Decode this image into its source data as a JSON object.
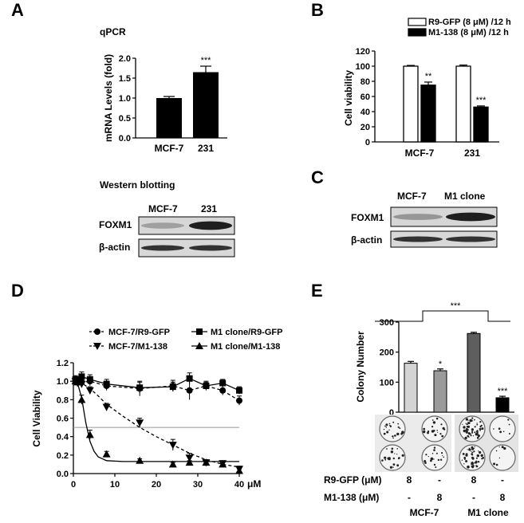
{
  "panels": {
    "A": {
      "letter": "A",
      "qpcr_title": "qPCR",
      "wb_title": "Western blotting",
      "wb_lane_labels": [
        "MCF-7",
        "231"
      ],
      "wb_row_labels": [
        "FOXM1",
        "β-actin"
      ],
      "wb_foxm1_intensity": [
        0.3,
        0.95
      ],
      "wb_actin_intensity": [
        0.85,
        0.85
      ]
    },
    "B": {
      "letter": "B"
    },
    "C": {
      "letter": "C",
      "lane_labels": [
        "MCF-7",
        "M1 clone"
      ],
      "row_labels": [
        "FOXM1",
        "β-actin"
      ],
      "foxm1_intensity": [
        0.35,
        0.95
      ],
      "actin_intensity": [
        0.85,
        0.85
      ]
    },
    "D": {
      "letter": "D"
    },
    "E": {
      "letter": "E",
      "bottom_row_labels": [
        "R9-GFP (μM)",
        "M1-138 (μM)"
      ],
      "r9gfp_values": [
        "8",
        "-",
        "8",
        "-"
      ],
      "m1138_values": [
        "-",
        "8",
        "-",
        "8"
      ],
      "group_labels": [
        "MCF-7",
        "M1 clone"
      ],
      "bracket_significance": "***"
    }
  },
  "chart_data": [
    {
      "id": "A-qpcr",
      "type": "bar",
      "categories": [
        "MCF-7",
        "231"
      ],
      "values": [
        1.0,
        1.65
      ],
      "errors": [
        0.04,
        0.15
      ],
      "significance": [
        "",
        "***"
      ],
      "ylabel": "mRNA Levels (fold)",
      "ylim": [
        0,
        2.0
      ],
      "yticks": [
        "0.0",
        "0.5",
        "1.0",
        "1.5",
        "2.0"
      ],
      "bar_color": "#000000"
    },
    {
      "id": "B-viability",
      "type": "bar",
      "categories": [
        "MCF-7",
        "231"
      ],
      "series": [
        {
          "name": "R9-GFP (8 μM) /12 h",
          "values": [
            100,
            100
          ],
          "errors": [
            1,
            1.5
          ],
          "significance": [
            "",
            ""
          ],
          "fill": "#ffffff"
        },
        {
          "name": "M1-138 (8 μM) /12 h",
          "values": [
            75,
            46
          ],
          "errors": [
            4,
            1.5
          ],
          "significance": [
            "**",
            "***"
          ],
          "fill": "#000000"
        }
      ],
      "ylabel": "Cell viability",
      "ylim": [
        0,
        120
      ],
      "yticks": [
        "0",
        "20",
        "40",
        "60",
        "80",
        "100",
        "120"
      ]
    },
    {
      "id": "D-dose-response",
      "type": "line",
      "xlabel": "μM",
      "ylabel": "Cell Viability",
      "xlim": [
        0,
        40
      ],
      "ylim": [
        0,
        1.2
      ],
      "xticks": [
        "0",
        "10",
        "20",
        "30",
        "40"
      ],
      "yticks": [
        "0.0",
        "0.2",
        "0.4",
        "0.6",
        "0.8",
        "1.0",
        "1.2"
      ],
      "reference_line": 0.5,
      "legend": [
        "MCF-7/R9-GFP",
        "M1 clone/R9-GFP",
        "MCF-7/M1-138",
        "M1 clone/M1-138"
      ],
      "series": [
        {
          "name": "MCF-7/R9-GFP",
          "marker": "circle",
          "dashed": true,
          "x": [
            0.5,
            1,
            2,
            4,
            8,
            16,
            24,
            28,
            32,
            36,
            40
          ],
          "y": [
            1.02,
            1.0,
            0.99,
            1.0,
            0.95,
            0.92,
            0.95,
            0.9,
            0.95,
            0.9,
            0.79
          ],
          "err": [
            0.04,
            0.04,
            0.04,
            0.05,
            0.05,
            0.08,
            0.06,
            0.1,
            0.05,
            0.05,
            0.05
          ]
        },
        {
          "name": "M1 clone/R9-GFP",
          "marker": "square",
          "dashed": false,
          "x": [
            0.5,
            1,
            2,
            4,
            8,
            16,
            24,
            28,
            32,
            36,
            40
          ],
          "y": [
            1.02,
            1.0,
            1.05,
            1.02,
            0.97,
            0.93,
            0.94,
            1.03,
            0.95,
            0.98,
            0.9
          ],
          "err": [
            0.03,
            0.03,
            0.05,
            0.05,
            0.05,
            0.06,
            0.05,
            0.06,
            0.04,
            0.04,
            0.04
          ]
        },
        {
          "name": "MCF-7/M1-138",
          "marker": "triangle-down",
          "dashed": true,
          "x": [
            0.5,
            1,
            2,
            4,
            8,
            16,
            24,
            28,
            32,
            36,
            40
          ],
          "y": [
            1.0,
            0.98,
            0.97,
            0.9,
            0.72,
            0.55,
            0.31,
            0.17,
            0.12,
            0.11,
            0.05
          ],
          "err": [
            0.03,
            0.03,
            0.04,
            0.04,
            0.04,
            0.05,
            0.06,
            0.05,
            0.03,
            0.03,
            0.03
          ],
          "fit": [
            [
              0,
              1.0
            ],
            [
              2,
              0.98
            ],
            [
              4,
              0.92
            ],
            [
              6,
              0.84
            ],
            [
              8,
              0.75
            ],
            [
              12,
              0.62
            ],
            [
              16,
              0.5
            ],
            [
              20,
              0.4
            ],
            [
              24,
              0.31
            ],
            [
              28,
              0.22
            ],
            [
              32,
              0.15
            ],
            [
              36,
              0.1
            ],
            [
              40,
              0.07
            ]
          ]
        },
        {
          "name": "M1 clone/M1-138",
          "marker": "triangle-up",
          "dashed": false,
          "x": [
            0.5,
            1,
            2,
            4,
            8,
            16,
            24,
            28,
            32,
            36,
            40
          ],
          "y": [
            1.0,
            0.99,
            0.8,
            0.42,
            0.21,
            0.14,
            0.1,
            0.12,
            0.12,
            0.1,
            0.03
          ],
          "err": [
            0.03,
            0.03,
            0.05,
            0.05,
            0.03,
            0.02,
            0.02,
            0.02,
            0.02,
            0.02,
            0.02
          ],
          "fit": [
            [
              0,
              1.0
            ],
            [
              1,
              0.98
            ],
            [
              2,
              0.82
            ],
            [
              3,
              0.55
            ],
            [
              4,
              0.35
            ],
            [
              5,
              0.24
            ],
            [
              6,
              0.18
            ],
            [
              8,
              0.14
            ],
            [
              12,
              0.13
            ],
            [
              40,
              0.13
            ]
          ]
        }
      ]
    },
    {
      "id": "E-colony",
      "type": "bar",
      "categories": [
        "MCF-7 R9-GFP",
        "MCF-7 M1-138",
        "M1 clone R9-GFP",
        "M1 clone M1-138"
      ],
      "values": [
        163,
        138,
        262,
        48
      ],
      "errors": [
        6,
        6,
        4,
        5
      ],
      "colors": [
        "#d4d4d4",
        "#9a9a9a",
        "#5e5e5e",
        "#000000"
      ],
      "significance": [
        "",
        "*",
        "",
        "***"
      ],
      "ylabel": "Colony Number",
      "ylim": [
        0,
        300
      ],
      "yticks": [
        "0",
        "100",
        "200",
        "300"
      ]
    }
  ]
}
